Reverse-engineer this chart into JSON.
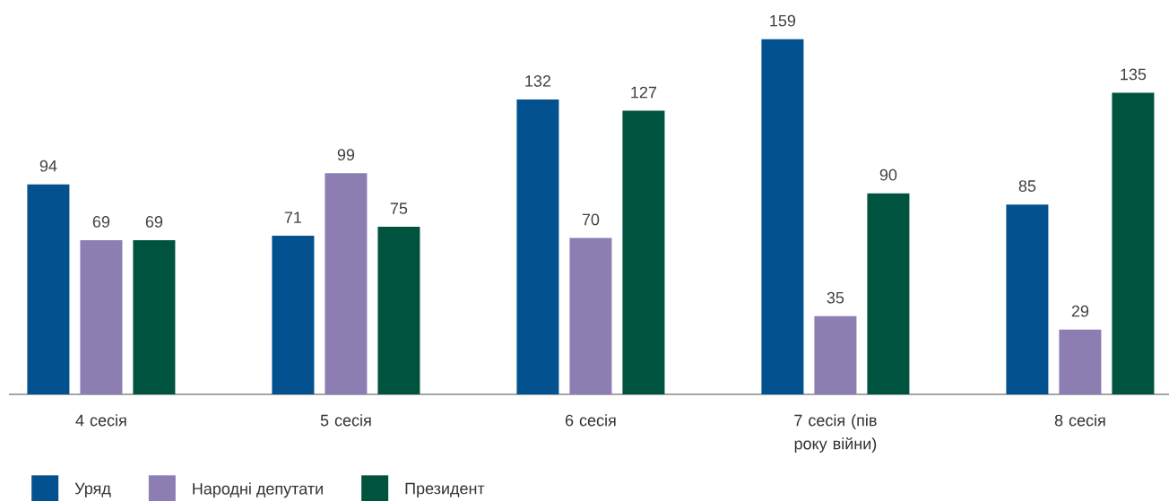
{
  "chart_data": {
    "type": "bar",
    "categories": [
      "4 сесія",
      "5 сесія",
      "6 сесія",
      "7 сесія (пів року війни)",
      "8 сесія"
    ],
    "series": [
      {
        "name": "Уряд",
        "color": "#03528f",
        "values": [
          94,
          71,
          132,
          159,
          85
        ]
      },
      {
        "name": "Народні депутати",
        "color": "#8c7db3",
        "values": [
          69,
          99,
          70,
          35,
          29
        ]
      },
      {
        "name": "Президент",
        "color": "#00533f",
        "values": [
          69,
          75,
          127,
          90,
          135
        ]
      }
    ],
    "tick_labels": "x",
    "data_labels": true,
    "legend": "bottom left"
  }
}
